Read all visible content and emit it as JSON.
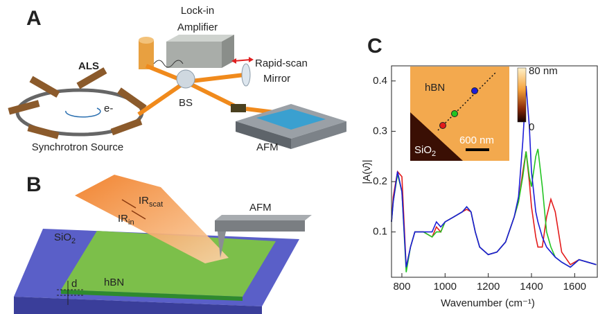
{
  "panel_a": {
    "label": "A",
    "lockin": [
      "Lock-in",
      "Amplifier"
    ],
    "mirror": [
      "Rapid-scan",
      "Mirror"
    ],
    "als": "ALS",
    "electron": "e-",
    "bs": "BS",
    "source": "Synchrotron Source",
    "afm": "AFM"
  },
  "panel_b": {
    "label": "B",
    "ir_scat": {
      "base": "IR",
      "sub": "scat"
    },
    "ir_in": {
      "base": "IR",
      "sub": "in"
    },
    "afm": "AFM",
    "substrate": {
      "base": "SiO",
      "sub": "2"
    },
    "layer": "hBN",
    "thickness": "d"
  },
  "chart_data": {
    "type": "line",
    "label": "C",
    "x_label": "Wavenumber (cm⁻¹)",
    "y_label": "|A(ν̄)|",
    "xlim": [
      752,
      1708
    ],
    "ylim": [
      0.01,
      0.43
    ],
    "xticks": [
      800,
      1000,
      1200,
      1400,
      1600
    ],
    "yticks": [
      0.1,
      0.2,
      0.3,
      0.4
    ],
    "x": [
      752,
      760,
      780,
      800,
      820,
      840,
      860,
      900,
      940,
      960,
      980,
      1000,
      1040,
      1080,
      1100,
      1120,
      1140,
      1160,
      1200,
      1240,
      1280,
      1320,
      1340,
      1360,
      1375,
      1390,
      1400,
      1420,
      1430,
      1450,
      1470,
      1490,
      1510,
      1540,
      1580,
      1620,
      1660,
      1700
    ],
    "series": [
      {
        "color": "#1c1cd8",
        "values": [
          0.12,
          0.16,
          0.22,
          0.18,
          0.03,
          0.07,
          0.1,
          0.1,
          0.1,
          0.12,
          0.11,
          0.12,
          0.13,
          0.14,
          0.15,
          0.14,
          0.1,
          0.07,
          0.055,
          0.06,
          0.08,
          0.13,
          0.17,
          0.28,
          0.39,
          0.31,
          0.22,
          0.14,
          0.12,
          0.09,
          0.07,
          0.06,
          0.05,
          0.04,
          0.03,
          0.045,
          0.04,
          0.035
        ]
      },
      {
        "color": "#22c422",
        "values": [
          0.12,
          0.16,
          0.215,
          0.18,
          0.02,
          0.07,
          0.1,
          0.1,
          0.09,
          0.1,
          0.1,
          0.12,
          0.13,
          0.14,
          0.15,
          0.14,
          0.1,
          0.07,
          0.055,
          0.06,
          0.08,
          0.13,
          0.16,
          0.21,
          0.26,
          0.21,
          0.19,
          0.25,
          0.265,
          0.19,
          0.1,
          0.07,
          0.05,
          0.04,
          0.03,
          0.045,
          0.04,
          0.035
        ]
      },
      {
        "color": "#e31a1a",
        "values": [
          0.12,
          0.17,
          0.22,
          0.21,
          0.03,
          0.07,
          0.1,
          0.1,
          0.09,
          0.11,
          0.1,
          0.12,
          0.13,
          0.14,
          0.145,
          0.14,
          0.1,
          0.07,
          0.055,
          0.06,
          0.08,
          0.13,
          0.16,
          0.22,
          0.26,
          0.2,
          0.15,
          0.09,
          0.07,
          0.07,
          0.13,
          0.165,
          0.14,
          0.06,
          0.035,
          0.045,
          0.04,
          0.035
        ]
      }
    ],
    "inset": {
      "layer": "hBN",
      "substrate": {
        "base": "SiO",
        "sub": "2"
      },
      "scale_bar": "600 nm",
      "colorbar_max": "80 nm",
      "colorbar_min": "0"
    }
  }
}
